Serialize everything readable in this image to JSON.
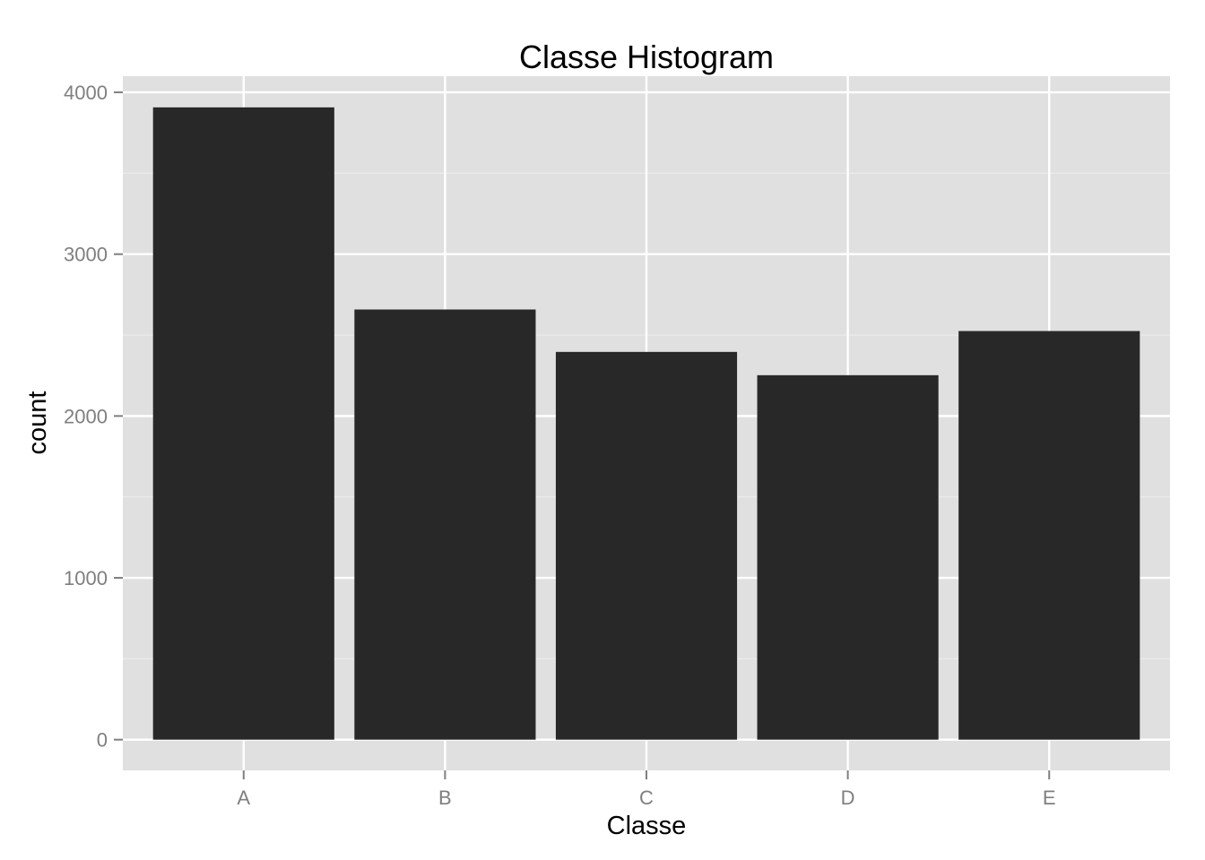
{
  "chart_data": {
    "type": "bar",
    "title": "Classe Histogram",
    "xlabel": "Classe",
    "ylabel": "count",
    "categories": [
      "A",
      "B",
      "C",
      "D",
      "E"
    ],
    "values": [
      3907,
      2658,
      2396,
      2252,
      2525
    ],
    "ylim": [
      -190,
      4100
    ],
    "yticks": [
      0,
      1000,
      2000,
      3000,
      4000
    ],
    "grid": true,
    "colors": {
      "panel_background": "#e0e0e0",
      "grid_major": "#ffffff",
      "grid_minor": "#ebebeb",
      "bar_fill": "#282828",
      "tick_text": "#7f7f7f",
      "tick_mark": "#7f7f7f"
    }
  }
}
